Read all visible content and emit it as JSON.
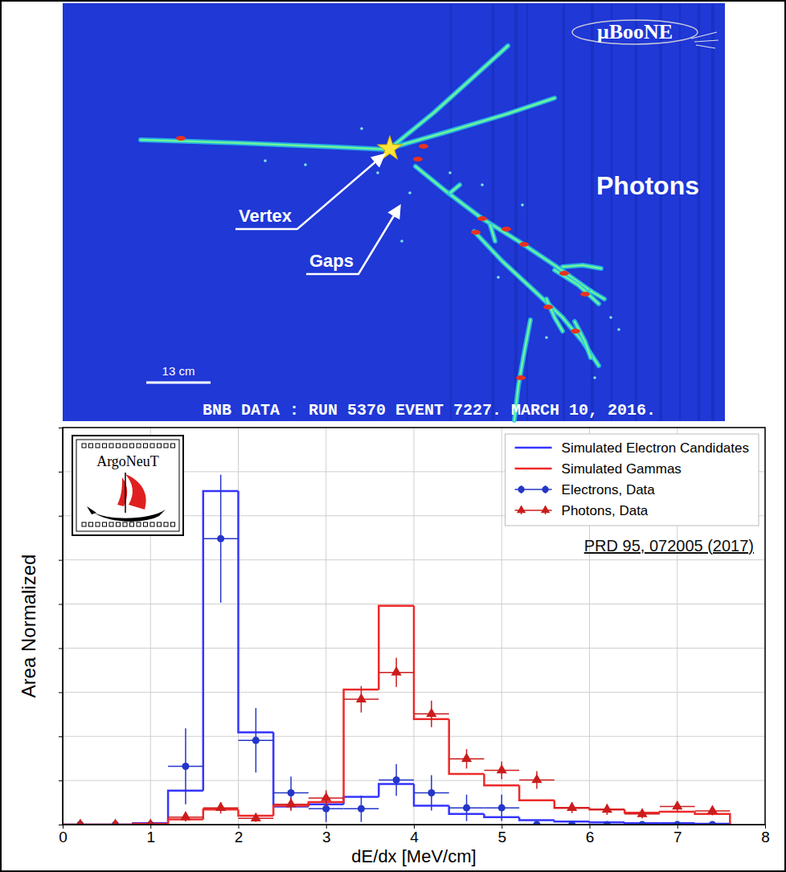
{
  "event_display": {
    "logo": "μBooNE",
    "label": "Photons",
    "annotations": [
      "Vertex",
      "Gaps"
    ],
    "scale_bar": "13 cm",
    "caption": "BNB DATA : RUN 5370 EVENT 7227. MARCH 10, 2016."
  },
  "chart_data": {
    "type": "histogram",
    "xlabel": "dE/dx [MeV/cm]",
    "ylabel": "Area Normalized",
    "annotations": [
      "PRD 95, 072005 (2017)",
      "ArgoNeuT"
    ],
    "xlim": [
      0,
      8
    ],
    "xticks": [
      0,
      1,
      2,
      3,
      4,
      5,
      6,
      7,
      8
    ],
    "ylim": [
      0,
      9
    ],
    "yticks": [
      0,
      1,
      2,
      3,
      4,
      5,
      6,
      7,
      8,
      9
    ],
    "grid": true,
    "legend": "upper right",
    "tick_labels": "x",
    "series": [
      {
        "name": "Simulated Electron Candidates",
        "type": "step",
        "color": "#3535ff",
        "bins": [
          0,
          0.4,
          0.8,
          1.2,
          1.6,
          2,
          2.4,
          2.8,
          3.2,
          3.6,
          4,
          4.4,
          4.8,
          5.2,
          5.6,
          6,
          6.4,
          6.8,
          7.2,
          7.6
        ],
        "values": [
          0,
          0,
          0.03,
          0.77,
          7.56,
          2.09,
          0.41,
          0.46,
          0.63,
          0.92,
          0.43,
          0.24,
          0.17,
          0.1,
          0.07,
          0.05,
          0.03,
          0.03,
          0.02
        ]
      },
      {
        "name": "Simulated Gammas",
        "type": "step",
        "color": "#ee2a2a",
        "bins": [
          0,
          0.4,
          0.8,
          1.2,
          1.6,
          2,
          2.4,
          2.8,
          3.2,
          3.6,
          4,
          4.4,
          4.8,
          5.2,
          5.6,
          6,
          6.4,
          6.8,
          7.2,
          7.6
        ],
        "values": [
          0,
          0,
          0.02,
          0.12,
          0.34,
          0.2,
          0.43,
          0.51,
          3.06,
          4.96,
          2.39,
          1.15,
          0.89,
          0.55,
          0.38,
          0.34,
          0.27,
          0.29,
          0.24
        ]
      },
      {
        "name": "Electrons, Data",
        "type": "errorbar",
        "color": "#2436c8",
        "marker": "circle",
        "x": [
          0.2,
          0.6,
          1.0,
          1.4,
          1.8,
          2.2,
          2.6,
          3.0,
          3.4,
          3.8,
          4.2,
          4.6,
          5.0,
          5.4,
          5.8,
          6.2,
          6.6,
          7.0,
          7.4
        ],
        "values": [
          0,
          0,
          0,
          1.32,
          6.48,
          1.91,
          0.72,
          0.36,
          0.36,
          1.01,
          0.72,
          0.38,
          0.38,
          0,
          0,
          0,
          0,
          0,
          0
        ],
        "errors": [
          0,
          0,
          0,
          0.86,
          1.45,
          0.73,
          0.37,
          0.3,
          0.3,
          0.36,
          0.4,
          0.3,
          0.3,
          0,
          0,
          0,
          0,
          0,
          0
        ],
        "x_errors": [
          0.2,
          0.2,
          0.2,
          0.2,
          0.2,
          0.2,
          0.2,
          0.2,
          0.2,
          0.2,
          0.2,
          0.2,
          0.2,
          0.2,
          0.2,
          0.2,
          0.2,
          0.2,
          0.2
        ]
      },
      {
        "name": "Photons, Data",
        "type": "errorbar",
        "color": "#cc1c1c",
        "marker": "triangle",
        "x": [
          0.2,
          0.6,
          1.0,
          1.4,
          1.8,
          2.2,
          2.6,
          3.0,
          3.4,
          3.8,
          4.2,
          4.6,
          5.0,
          5.4,
          5.8,
          6.2,
          6.6,
          7.0,
          7.4
        ],
        "values": [
          0,
          0,
          0,
          0.17,
          0.38,
          0.14,
          0.46,
          0.6,
          2.84,
          3.45,
          2.51,
          1.49,
          1.23,
          1.01,
          0.38,
          0.34,
          0.24,
          0.41,
          0.31
        ],
        "errors": [
          0,
          0,
          0,
          0.1,
          0.13,
          0.08,
          0.15,
          0.18,
          0.3,
          0.33,
          0.3,
          0.22,
          0.2,
          0.2,
          0.12,
          0.12,
          0.1,
          0.12,
          0.1
        ],
        "x_errors": [
          0.2,
          0.2,
          0.2,
          0.2,
          0.2,
          0.2,
          0.2,
          0.2,
          0.2,
          0.2,
          0.2,
          0.2,
          0.2,
          0.2,
          0.2,
          0.2,
          0.2,
          0.2,
          0.2
        ]
      }
    ]
  }
}
